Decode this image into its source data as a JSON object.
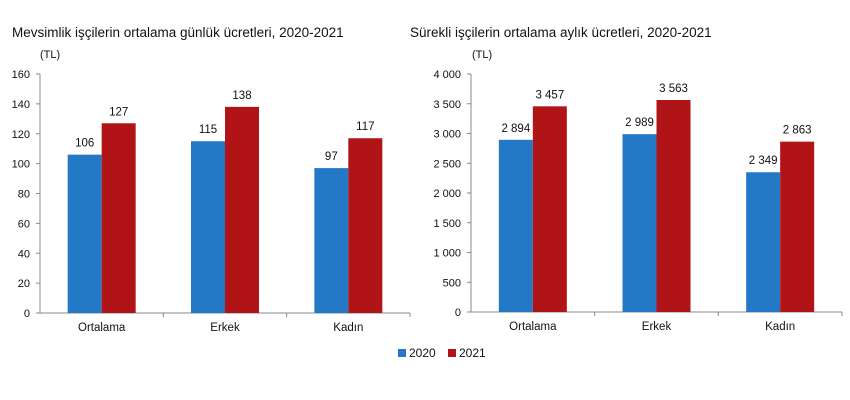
{
  "colors": {
    "2020": "#2479c6",
    "2021": "#b01416"
  },
  "legend": [
    "2020",
    "2021"
  ],
  "chart_data": [
    {
      "type": "bar",
      "title": "Mevsimlik işçilerin ortalama günlük ücretleri, 2020-2021",
      "ylabel": "(TL)",
      "categories": [
        "Ortalama",
        "Erkek",
        "Kadın"
      ],
      "series": [
        {
          "name": "2020",
          "values": [
            106,
            115,
            97
          ],
          "labels": [
            "106",
            "115",
            "97"
          ]
        },
        {
          "name": "2021",
          "values": [
            127,
            138,
            117
          ],
          "labels": [
            "127",
            "138",
            "117"
          ]
        }
      ],
      "ylim": [
        0,
        160
      ],
      "yticks": [
        0,
        20,
        40,
        60,
        80,
        100,
        120,
        140,
        160
      ],
      "ytick_labels": [
        "0",
        "20",
        "40",
        "60",
        "80",
        "100",
        "120",
        "140",
        "160"
      ],
      "grid": false,
      "legend": "bottom"
    },
    {
      "type": "bar",
      "title": "Sürekli işçilerin ortalama aylık ücretleri, 2020-2021",
      "ylabel": "(TL)",
      "categories": [
        "Ortalama",
        "Erkek",
        "Kadın"
      ],
      "series": [
        {
          "name": "2020",
          "values": [
            2894,
            2989,
            2349
          ],
          "labels": [
            "2 894",
            "2 989",
            "2 349"
          ]
        },
        {
          "name": "2021",
          "values": [
            3457,
            3563,
            2863
          ],
          "labels": [
            "3 457",
            "3 563",
            "2 863"
          ]
        }
      ],
      "ylim": [
        0,
        4000
      ],
      "yticks": [
        0,
        500,
        1000,
        1500,
        2000,
        2500,
        3000,
        3500,
        4000
      ],
      "ytick_labels": [
        "0",
        "500",
        "1 000",
        "1 500",
        "2 000",
        "2 500",
        "3 000",
        "3 500",
        "4 000"
      ],
      "grid": false,
      "legend": "bottom"
    }
  ]
}
